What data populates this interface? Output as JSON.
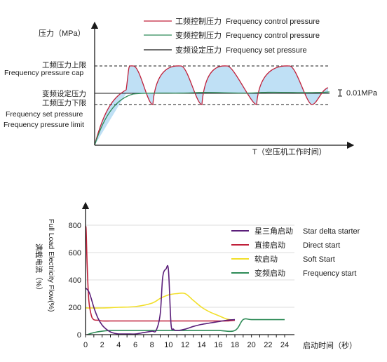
{
  "chart_data": [
    {
      "type": "line",
      "ylabel": "压力（MPa）",
      "xlabel": "T（空压机工作时间）",
      "legend_position": "top",
      "series": [
        {
          "name": "工频控制压力  Frequency control pressure",
          "color": "#c0203a",
          "fill": "#bfe0f5"
        },
        {
          "name": "变频控制压力  Frequency control pressure",
          "color": "#2e8b57"
        },
        {
          "name": "变频设定压力  Frequency set pressure",
          "color": "#1a1a1a"
        }
      ],
      "reference_lines": {
        "cap_cn": "工频压力上限",
        "cap_en": "Frequency pressure cap",
        "set_cn": "变频设定压力",
        "limit_cn": "工频压力下限",
        "limit_en1": "Frequency set pressure",
        "limit_en2": "Frequency pressure limit"
      },
      "annotation": "0.01MPa"
    },
    {
      "type": "line",
      "ylabel_cn": "满载电流（%）",
      "ylabel_en": "Full Load Electricity Flow(%)",
      "xlabel": "启动时间（秒）",
      "ylim": [
        0,
        850
      ],
      "xlim": [
        0,
        25
      ],
      "yticks": [
        "0",
        "200",
        "400",
        "600",
        "800"
      ],
      "xticks": [
        "0",
        "1",
        "2",
        "3",
        "4",
        "5",
        "6",
        "7",
        "8",
        "9",
        "10",
        "11",
        "12",
        "13",
        "14",
        "15",
        "16",
        "17",
        "18",
        "19",
        "20",
        "21",
        "22",
        "23",
        "24"
      ],
      "xtick_values": [
        0,
        1,
        2,
        3,
        4,
        5,
        6,
        7,
        8,
        9,
        10,
        11,
        12,
        13,
        14,
        15,
        16,
        17,
        18,
        19,
        20,
        21,
        22,
        23,
        24
      ],
      "ytick_values": [
        0,
        200,
        400,
        600,
        800
      ],
      "legend_position": "top-right",
      "series": [
        {
          "name_cn": "星三角启动",
          "name_en": "Star delta starter",
          "color": "#5b1f7a",
          "x": [
            0,
            0.2,
            0.5,
            1,
            1.5,
            2,
            2.5,
            3,
            3.5,
            4,
            5,
            6,
            7,
            8,
            8.5,
            9,
            9.3,
            9.7,
            10,
            10.3,
            10.6,
            11,
            12,
            13,
            14,
            15,
            16,
            17,
            18
          ],
          "y": [
            340,
            330,
            300,
            200,
            120,
            70,
            40,
            20,
            10,
            5,
            5,
            5,
            15,
            25,
            30,
            150,
            420,
            480,
            470,
            80,
            40,
            30,
            40,
            60,
            75,
            85,
            95,
            105,
            110
          ]
        },
        {
          "name_cn": "直接启动",
          "name_en": "Direct start",
          "color": "#c0203a",
          "x": [
            0,
            0.08,
            0.2,
            0.4,
            0.7,
            1,
            1.5,
            2,
            3,
            4,
            5,
            6,
            7,
            8,
            9,
            10,
            11,
            12,
            13,
            14,
            15,
            16,
            17,
            18
          ],
          "y": [
            790,
            760,
            500,
            250,
            140,
            110,
            105,
            100,
            100,
            100,
            100,
            100,
            100,
            100,
            100,
            100,
            100,
            100,
            100,
            100,
            100,
            100,
            100,
            105
          ]
        },
        {
          "name_cn": "软启动",
          "name_en": "Soft Start",
          "color": "#f2df2a",
          "x": [
            0,
            2,
            4,
            6,
            8,
            9,
            10,
            11,
            12,
            13,
            14,
            15,
            16,
            17,
            18
          ],
          "y": [
            195,
            195,
            200,
            205,
            230,
            265,
            290,
            300,
            300,
            250,
            200,
            165,
            140,
            115,
            105
          ]
        },
        {
          "name_cn": "变频启动",
          "name_en": "Frequency start",
          "color": "#2e8b57",
          "x": [
            0.2,
            1,
            2,
            3,
            4,
            6,
            8,
            10,
            12,
            14,
            16,
            18,
            19,
            20,
            22,
            24
          ],
          "y": [
            0,
            15,
            25,
            30,
            30,
            30,
            30,
            30,
            30,
            30,
            30,
            30,
            110,
            110,
            110,
            110
          ]
        }
      ]
    }
  ]
}
